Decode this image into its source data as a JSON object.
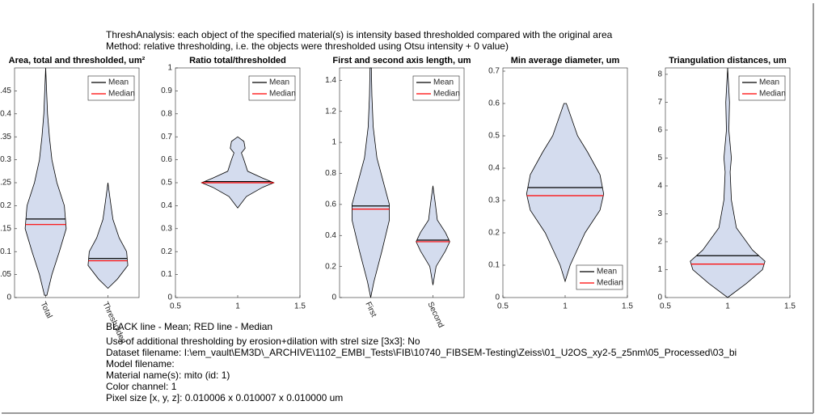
{
  "header": [
    "ThreshAnalysis: each object of the specified material(s) is intensity based thresholded compared with the original area",
    "Method: relative thresholding, i.e. the objects were thresholded using Otsu intensity + 0 value)"
  ],
  "footer": [
    "BLACK line - Mean; RED line - Median",
    "Use of additional thresholding by erosion+dilation with strel size [3x3]: No",
    "Dataset filename: I:\\em_vault\\EM3D\\_ARCHIVE\\1102_EMBI_Tests\\FIB\\10740_FIBSEM-Testing\\Zeiss\\01_U2OS_xy2-5_z5nm\\05_Processed\\03_bi",
    "Model filename:",
    "Material name(s): mito (id: 1)",
    "Color channel: 1",
    "Pixel size [x, y, z]: 0.010006 x 0.010007 x 0.010000 um"
  ],
  "chart_data": [
    {
      "type": "violin",
      "title": "Area, total and thresholded, um²",
      "fill": "#d4dcee",
      "legend": "northeast",
      "series": [
        {
          "name": "Mean",
          "color": "#000000"
        },
        {
          "name": "Median",
          "color": "#ff0000"
        }
      ],
      "xlim": [
        0.5,
        2.5
      ],
      "xticks": [
        {
          "value": 1,
          "label": "Total"
        },
        {
          "value": 2,
          "label": "Thresholded"
        }
      ],
      "xtick_rotation": 65,
      "ylim": [
        0,
        0.5
      ],
      "yticks": [
        0,
        0.05,
        0.1,
        0.15,
        0.2,
        0.25,
        0.3,
        0.35,
        0.4,
        0.45
      ],
      "violins": [
        {
          "x": 1,
          "mean": 0.171,
          "median": 0.159,
          "profile": [
            [
              0.005,
              0.02
            ],
            [
              0.05,
              0.1
            ],
            [
              0.1,
              0.22
            ],
            [
              0.15,
              0.33
            ],
            [
              0.2,
              0.3
            ],
            [
              0.25,
              0.18
            ],
            [
              0.3,
              0.1
            ],
            [
              0.35,
              0.06
            ],
            [
              0.4,
              0.03
            ],
            [
              0.5,
              0
            ]
          ]
        },
        {
          "x": 2,
          "mean": 0.085,
          "median": 0.08,
          "profile": [
            [
              0.02,
              0
            ],
            [
              0.04,
              0.15
            ],
            [
              0.07,
              0.32
            ],
            [
              0.1,
              0.3
            ],
            [
              0.13,
              0.18
            ],
            [
              0.17,
              0.08
            ],
            [
              0.2,
              0.05
            ],
            [
              0.25,
              0
            ]
          ]
        }
      ]
    },
    {
      "type": "violin",
      "title": "Ratio total/thresholded",
      "fill": "#d4dcee",
      "legend": "northeast",
      "series": [
        {
          "name": "Mean",
          "color": "#000000"
        },
        {
          "name": "Median",
          "color": "#ff0000"
        }
      ],
      "xlim": [
        0.5,
        1.5
      ],
      "xticks": [
        0.5,
        1,
        1.5
      ],
      "ylim": [
        0,
        1
      ],
      "yticks": [
        0,
        0.1,
        0.2,
        0.3,
        0.4,
        0.5,
        0.6,
        0.7,
        0.8,
        0.9,
        1
      ],
      "violins": [
        {
          "x": 1,
          "mean": 0.505,
          "median": 0.5,
          "profile": [
            [
              0.39,
              0
            ],
            [
              0.44,
              0.07
            ],
            [
              0.48,
              0.2
            ],
            [
              0.5,
              0.29
            ],
            [
              0.52,
              0.2
            ],
            [
              0.55,
              0.08
            ],
            [
              0.6,
              0.05
            ],
            [
              0.63,
              0.03
            ],
            [
              0.65,
              0.06
            ],
            [
              0.68,
              0.05
            ],
            [
              0.7,
              0
            ]
          ]
        }
      ]
    },
    {
      "type": "violin",
      "title": "First and second axis length, um",
      "fill": "#d4dcee",
      "legend": "northeast",
      "series": [
        {
          "name": "Mean",
          "color": "#000000"
        },
        {
          "name": "Median",
          "color": "#ff0000"
        }
      ],
      "xlim": [
        0.5,
        2.5
      ],
      "xticks": [
        {
          "value": 1,
          "label": "First"
        },
        {
          "value": 2,
          "label": "Second"
        }
      ],
      "xtick_rotation": 65,
      "ylim": [
        0,
        1.48
      ],
      "yticks": [
        0,
        0.2,
        0.4,
        0.6,
        0.8,
        1,
        1.2,
        1.4
      ],
      "violins": [
        {
          "x": 1,
          "mean": 0.59,
          "median": 0.57,
          "profile": [
            [
              0,
              0
            ],
            [
              0.1,
              0.05
            ],
            [
              0.3,
              0.18
            ],
            [
              0.5,
              0.3
            ],
            [
              0.6,
              0.3
            ],
            [
              0.75,
              0.2
            ],
            [
              0.9,
              0.1
            ],
            [
              1.1,
              0.04
            ],
            [
              1.3,
              0.02
            ],
            [
              1.48,
              0.01
            ]
          ]
        },
        {
          "x": 2,
          "mean": 0.37,
          "median": 0.36,
          "profile": [
            [
              0.08,
              0
            ],
            [
              0.2,
              0.05
            ],
            [
              0.3,
              0.2
            ],
            [
              0.36,
              0.27
            ],
            [
              0.42,
              0.2
            ],
            [
              0.5,
              0.07
            ],
            [
              0.6,
              0.04
            ],
            [
              0.72,
              0
            ]
          ]
        }
      ]
    },
    {
      "type": "violin",
      "title": "Min average diameter, um",
      "fill": "#d4dcee",
      "legend": "southeast",
      "series": [
        {
          "name": "Mean",
          "color": "#000000"
        },
        {
          "name": "Median",
          "color": "#ff0000"
        }
      ],
      "xlim": [
        0.5,
        1.5
      ],
      "xticks": [
        0.5,
        1,
        1.5
      ],
      "ylim": [
        0,
        0.71
      ],
      "yticks": [
        0,
        0.1,
        0.2,
        0.3,
        0.4,
        0.5,
        0.6,
        0.7
      ],
      "violins": [
        {
          "x": 1,
          "mean": 0.34,
          "median": 0.315,
          "profile": [
            [
              0.05,
              0
            ],
            [
              0.1,
              0.04
            ],
            [
              0.2,
              0.16
            ],
            [
              0.27,
              0.28
            ],
            [
              0.32,
              0.31
            ],
            [
              0.38,
              0.28
            ],
            [
              0.45,
              0.18
            ],
            [
              0.5,
              0.1
            ],
            [
              0.6,
              0.01
            ]
          ]
        }
      ]
    },
    {
      "type": "violin",
      "title": "Triangulation distances, um",
      "fill": "#d4dcee",
      "legend": "northeast",
      "series": [
        {
          "name": "Mean",
          "color": "#000000"
        },
        {
          "name": "Median",
          "color": "#ff0000"
        }
      ],
      "xlim": [
        0.5,
        1.5
      ],
      "xticks": [
        0.5,
        1,
        1.5
      ],
      "ylim": [
        0,
        8.23
      ],
      "yticks": [
        0,
        1,
        2,
        3,
        4,
        5,
        6,
        7,
        8
      ],
      "violins": [
        {
          "x": 1,
          "mean": 1.5,
          "median": 1.2,
          "profile": [
            [
              0,
              0
            ],
            [
              0.5,
              0.15
            ],
            [
              1,
              0.28
            ],
            [
              1.3,
              0.3
            ],
            [
              1.7,
              0.2
            ],
            [
              2.5,
              0.07
            ],
            [
              3.5,
              0.03
            ],
            [
              4.5,
              0.02
            ],
            [
              5,
              0.03
            ],
            [
              6,
              0.01
            ],
            [
              7,
              0.015
            ],
            [
              8.23,
              0
            ]
          ]
        }
      ]
    }
  ]
}
